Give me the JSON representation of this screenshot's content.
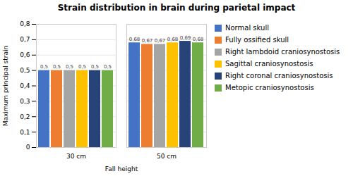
{
  "chart_data": {
    "type": "bar",
    "title": "Strain distribution in brain during parietal impact",
    "xlabel": "Fall height",
    "ylabel": "Maximum principal strain",
    "categories": [
      "30 cm",
      "50 cm"
    ],
    "series": [
      {
        "name": "Normal skull",
        "color": "#4472C4",
        "values": [
          0.5,
          0.68
        ],
        "value_labels": [
          "0,5",
          "0,68"
        ]
      },
      {
        "name": "Fully ossified skull",
        "color": "#ED7D31",
        "values": [
          0.5,
          0.67
        ],
        "value_labels": [
          "0,5",
          "0,67"
        ]
      },
      {
        "name": "Right lambdoid craniosynostosis",
        "color": "#A5A5A5",
        "values": [
          0.5,
          0.67
        ],
        "value_labels": [
          "0,5",
          "0,67"
        ]
      },
      {
        "name": "Sagittal craniosynostosis",
        "color": "#FFC000",
        "values": [
          0.5,
          0.68
        ],
        "value_labels": [
          "0,5",
          "0,68"
        ]
      },
      {
        "name": "Right coronal craniosynostosis",
        "color": "#264478",
        "values": [
          0.5,
          0.69
        ],
        "value_labels": [
          "0,5",
          "0,69"
        ]
      },
      {
        "name": "Metopic craniosynostosis",
        "color": "#70AD47",
        "values": [
          0.5,
          0.68
        ],
        "value_labels": [
          "0,5",
          "0,68"
        ]
      }
    ],
    "ylim": [
      0,
      0.8
    ],
    "yticks": [
      0,
      {
        "value": 0.1,
        "label": "0,1"
      },
      {
        "value": 0.2,
        "label": "0,2"
      },
      {
        "value": 0.3,
        "label": "0,3"
      },
      {
        "value": 0.4,
        "label": "0,4"
      },
      {
        "value": 0.5,
        "label": "0,5"
      },
      {
        "value": 0.6,
        "label": "0,6"
      },
      {
        "value": 0.7,
        "label": "0,7"
      },
      {
        "value": 0.8,
        "label": "0,8"
      }
    ],
    "grid": true,
    "legend": "right",
    "data_labels": true
  }
}
